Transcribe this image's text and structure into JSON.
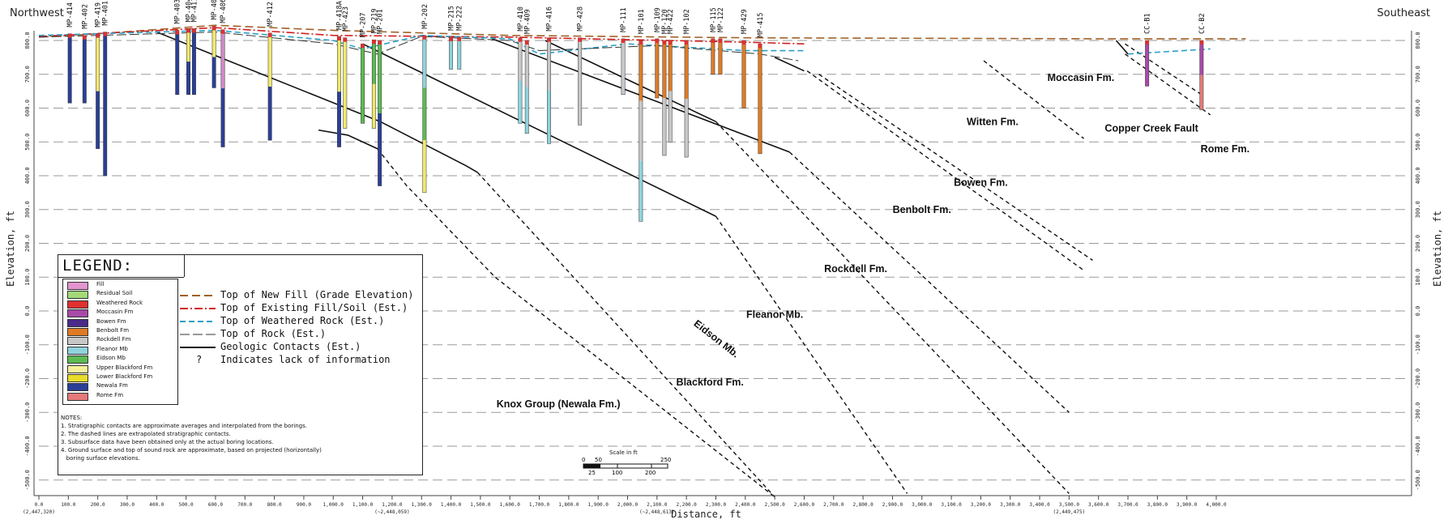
{
  "header": {
    "left": "Northwest",
    "right": "Southeast"
  },
  "axes": {
    "ylabel": "Elevation, ft",
    "xlabel": "Distance, ft",
    "y_ticks": [
      "800.0",
      "700.0",
      "600.0",
      "500.0",
      "400.0",
      "300.0",
      "200.0",
      "100.0",
      "0.0",
      "-100.0",
      "-200.0",
      "-300.0",
      "-400.0",
      "-500.0"
    ],
    "x_ticks": [
      "0.0",
      "100.0",
      "200.0",
      "300.0",
      "400.0",
      "500.0",
      "600.0",
      "700.0",
      "800.0",
      "900.0",
      "1,000.0",
      "1,100.0",
      "1,200.0",
      "1,300.0",
      "1,400.0",
      "1,500.0",
      "1,600.0",
      "1,700.0",
      "1,800.0",
      "1,900.0",
      "2,000.0",
      "2,100.0",
      "2,200.0",
      "2,300.0",
      "2,400.0",
      "2,500.0",
      "2,600.0",
      "2,700.0",
      "2,800.0",
      "2,900.0",
      "3,000.0",
      "3,100.0",
      "3,200.0",
      "3,300.0",
      "3,400.0",
      "3,500.0",
      "3,600.0",
      "3,700.0",
      "3,800.0",
      "3,900.0",
      "4,000.0"
    ],
    "x_coords": [
      {
        "x": 0,
        "text": "(2,447,320)"
      },
      {
        "x": 1200,
        "text": "(~2,448,059)"
      },
      {
        "x": 2100,
        "text": "(~2,448,613)"
      },
      {
        "x": 3500,
        "text": "(2,449,475)"
      }
    ]
  },
  "borings": [
    {
      "id": "MP-414",
      "x": 105,
      "top": 820,
      "bottom": 615,
      "cols": [
        "#2a3f96"
      ]
    },
    {
      "id": "MP-402",
      "x": 155,
      "top": 815,
      "bottom": 615,
      "cols": [
        "#2a3f96"
      ]
    },
    {
      "id": "MP-419",
      "x": 200,
      "top": 820,
      "bottom": 480,
      "cols": [
        "#f0e870",
        "#2a3f96"
      ]
    },
    {
      "id": "MP-401",
      "x": 225,
      "top": 825,
      "bottom": 400,
      "cols": [
        "#2a3f96"
      ]
    },
    {
      "id": "MP-403",
      "x": 470,
      "top": 830,
      "bottom": 640,
      "cols": [
        "#2a3f96"
      ]
    },
    {
      "id": "MP-404",
      "x": 508,
      "top": 835,
      "bottom": 640,
      "cols": [
        "#f0e870",
        "#2a3f96"
      ]
    },
    {
      "id": "MP-411",
      "x": 527,
      "top": 835,
      "bottom": 640,
      "cols": [
        "#2a3f96"
      ]
    },
    {
      "id": "MP-405",
      "x": 595,
      "top": 842,
      "bottom": 660,
      "cols": [
        "#f0e870",
        "#2a3f96"
      ]
    },
    {
      "id": "MP-406",
      "x": 625,
      "top": 832,
      "bottom": 485,
      "cols": [
        "#d089c8",
        "#2a3f96"
      ]
    },
    {
      "id": "MP-412",
      "x": 785,
      "top": 822,
      "bottom": 505,
      "cols": [
        "#f0e870",
        "#2a3f96"
      ]
    },
    {
      "id": "MP-418A",
      "x": 1020,
      "top": 812,
      "bottom": 485,
      "cols": [
        "#f0e870",
        "#2a3f96"
      ]
    },
    {
      "id": "MP-423",
      "x": 1040,
      "top": 808,
      "bottom": 540,
      "cols": [
        "#f0e870"
      ]
    },
    {
      "id": "MP-207",
      "x": 1100,
      "top": 790,
      "bottom": 555,
      "cols": [
        "#5dbb52"
      ]
    },
    {
      "id": "MP-219",
      "x": 1138,
      "top": 802,
      "bottom": 540,
      "cols": [
        "#5dbb52",
        "#f0e870"
      ]
    },
    {
      "id": "MP-201",
      "x": 1158,
      "top": 800,
      "bottom": 370,
      "cols": [
        "#5dbb52",
        "#2a3f96"
      ]
    },
    {
      "id": "MP-202",
      "x": 1310,
      "top": 815,
      "bottom": 350,
      "cols": [
        "#8fd3dc",
        "#5dbb52",
        "#f0e870"
      ]
    },
    {
      "id": "MP-215",
      "x": 1400,
      "top": 810,
      "bottom": 715,
      "cols": [
        "#8fd3dc"
      ]
    },
    {
      "id": "MP-222",
      "x": 1428,
      "top": 810,
      "bottom": 715,
      "cols": [
        "#8fd3dc"
      ]
    },
    {
      "id": "MP-410",
      "x": 1635,
      "top": 808,
      "bottom": 555,
      "cols": [
        "#c7c7c7",
        "#8fd3dc"
      ]
    },
    {
      "id": "MP-409",
      "x": 1658,
      "top": 800,
      "bottom": 525,
      "cols": [
        "#c7c7c7",
        "#8fd3dc"
      ]
    },
    {
      "id": "MP-416",
      "x": 1733,
      "top": 808,
      "bottom": 495,
      "cols": [
        "#c7c7c7",
        "#8fd3dc"
      ]
    },
    {
      "id": "MP-428",
      "x": 1838,
      "top": 808,
      "bottom": 550,
      "cols": [
        "#c7c7c7"
      ]
    },
    {
      "id": "MP-111",
      "x": 1985,
      "top": 805,
      "bottom": 640,
      "cols": [
        "#c7c7c7"
      ]
    },
    {
      "id": "MP-101",
      "x": 2045,
      "top": 800,
      "bottom": 265,
      "cols": [
        "#e07a24",
        "#c7c7c7",
        "#8fd3dc"
      ]
    },
    {
      "id": "MP-109",
      "x": 2100,
      "top": 805,
      "bottom": 630,
      "cols": [
        "#e07a24"
      ]
    },
    {
      "id": "MP-120",
      "x": 2125,
      "top": 800,
      "bottom": 460,
      "cols": [
        "#e07a24",
        "#c7c7c7"
      ]
    },
    {
      "id": "MP-422",
      "x": 2145,
      "top": 800,
      "bottom": 500,
      "cols": [
        "#e07a24",
        "#c7c7c7"
      ]
    },
    {
      "id": "MP-102",
      "x": 2200,
      "top": 800,
      "bottom": 455,
      "cols": [
        "#e07a24",
        "#c7c7c7"
      ]
    },
    {
      "id": "MP-115",
      "x": 2290,
      "top": 805,
      "bottom": 700,
      "cols": [
        "#e07a24"
      ]
    },
    {
      "id": "MP-122",
      "x": 2315,
      "top": 805,
      "bottom": 700,
      "cols": [
        "#e07a24"
      ]
    },
    {
      "id": "MP-429",
      "x": 2395,
      "top": 800,
      "bottom": 600,
      "cols": [
        "#e07a24"
      ]
    },
    {
      "id": "MP-415",
      "x": 2450,
      "top": 790,
      "bottom": 465,
      "cols": [
        "#e07a24"
      ]
    },
    {
      "id": "CC-B1",
      "x": 3765,
      "top": 800,
      "bottom": 665,
      "cols": [
        "#a84aa8"
      ]
    },
    {
      "id": "CC-B2",
      "x": 3950,
      "top": 800,
      "bottom": 595,
      "cols": [
        "#a84aa8",
        "#e57a7a"
      ]
    }
  ],
  "formations": [
    {
      "text": "Moccasin Fm.",
      "x": 3540,
      "y": 680,
      "rot": 0
    },
    {
      "text": "Witten Fm.",
      "x": 3240,
      "y": 550,
      "rot": 0
    },
    {
      "text": "Copper Creek Fault",
      "x": 3780,
      "y": 530,
      "rot": 0
    },
    {
      "text": "Rome Fm.",
      "x": 4030,
      "y": 470,
      "rot": 0
    },
    {
      "text": "Bowen Fm.",
      "x": 3200,
      "y": 370,
      "rot": 0
    },
    {
      "text": "Benbolt Fm.",
      "x": 3000,
      "y": 290,
      "rot": 0
    },
    {
      "text": "Rockdell Fm.",
      "x": 2775,
      "y": 115,
      "rot": 0
    },
    {
      "text": "Fleanor Mb.",
      "x": 2500,
      "y": -20,
      "rot": 0
    },
    {
      "text": "Eidson Mb.",
      "x": 2295,
      "y": -90,
      "rot": 38
    },
    {
      "text": "Blackford Fm.",
      "x": 2280,
      "y": -220,
      "rot": 0
    },
    {
      "text": "Knox Group (Newala Fm.)",
      "x": 1765,
      "y": -285,
      "rot": 0
    }
  ],
  "legend": {
    "title": "LEGEND:",
    "swatches": [
      {
        "label": "Fill",
        "color": "#e494cf"
      },
      {
        "label": "Residual Soil",
        "color": "#a3d977"
      },
      {
        "label": "Weathered Rock",
        "color": "#e03030"
      },
      {
        "label": "Moccasin Fm",
        "color": "#a84aa8"
      },
      {
        "label": "Bowen Fm",
        "color": "#4a2a8a"
      },
      {
        "label": "Benbolt Fm",
        "color": "#e07a24"
      },
      {
        "label": "Rockdell Fm",
        "color": "#c7c7c7"
      },
      {
        "label": "Fleanor Mb",
        "color": "#8fd3dc"
      },
      {
        "label": "Eidson Mb",
        "color": "#5dbb52"
      },
      {
        "label": "Upper Blackford Fm",
        "color": "#f5f09a"
      },
      {
        "label": "Lower Blackford Fm",
        "color": "#e9dc2a"
      },
      {
        "label": "Newala Fm",
        "color": "#2a3f96"
      },
      {
        "label": "Rome Fm",
        "color": "#e57a7a"
      }
    ],
    "lines": [
      {
        "label": "Top of New Fill (Grade Elevation)",
        "color": "#a0622a",
        "dash": "10,5",
        "width": 2
      },
      {
        "label": "Top of Existing Fill/Soil (Est.)",
        "color": "#d21e1e",
        "dash": "10,3,2,3",
        "width": 2
      },
      {
        "label": "Top of Weathered Rock (Est.)",
        "color": "#2aa0c8",
        "dash": "7,4",
        "width": 2
      },
      {
        "label": "Top of Rock (Est.)",
        "color": "#333333",
        "dash": "12,4",
        "width": 1
      },
      {
        "label": "Geologic Contacts (Est.)",
        "color": "#111111",
        "dash": "",
        "width": 2
      },
      {
        "label": "Indicates lack of information",
        "symbol": "?"
      }
    ],
    "notes_title": "NOTES:",
    "notes": [
      "1. Stratigraphic contacts are approximate averages and interpolated from the borings.",
      "2. The dashed lines are extrapolated stratigraphic contacts.",
      "3. Subsurface data have been obtained only at the actual boring locations.",
      "4. Ground surface and top of sound rock are approximate, based on projected (horizontally)",
      "   boring surface elevations."
    ]
  },
  "scale_bar": {
    "title": "Scale in ft",
    "top_ticks": [
      "0",
      "50",
      "",
      "",
      "250"
    ],
    "bottom_ticks": [
      "25",
      "100",
      "200"
    ]
  }
}
